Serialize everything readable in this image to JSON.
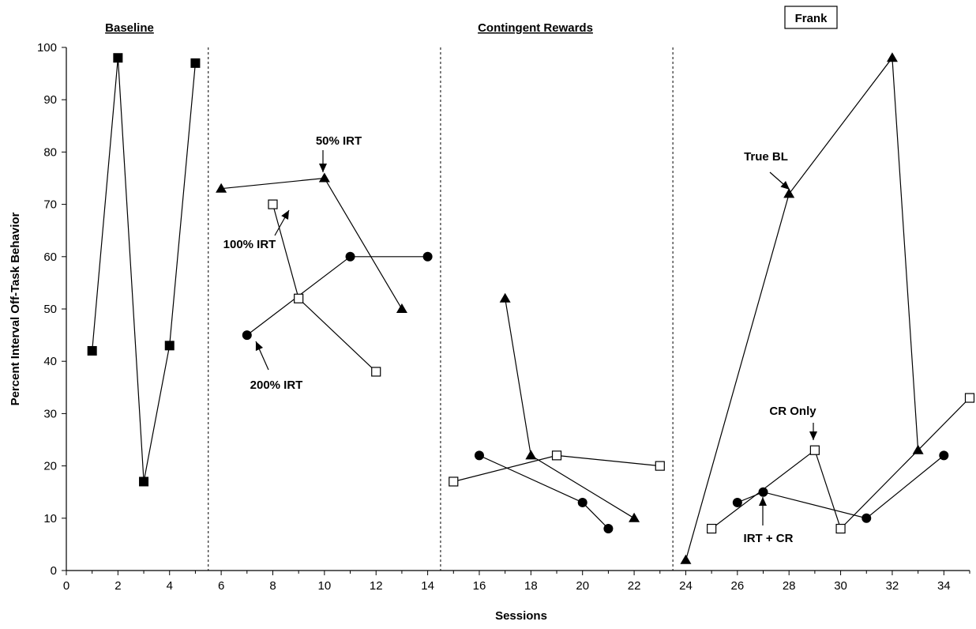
{
  "chart_data": {
    "type": "line",
    "participant": "Frank",
    "xlabel": "Sessions",
    "ylabel": "Percent Interval Off-Task Behavior",
    "xlim": [
      0,
      35
    ],
    "ylim": [
      0,
      100
    ],
    "x_ticks": [
      0,
      2,
      4,
      6,
      8,
      10,
      12,
      14,
      16,
      18,
      20,
      22,
      24,
      26,
      28,
      30,
      32,
      34
    ],
    "y_ticks": [
      0,
      10,
      20,
      30,
      40,
      50,
      60,
      70,
      80,
      90,
      100
    ],
    "grid": false,
    "legend": "none",
    "phases": [
      {
        "label": "Baseline",
        "start": 0,
        "end": 5.5
      },
      {
        "label": "Contingent Rewards",
        "start": 5.5,
        "end": 23.5
      },
      {
        "label": "",
        "start": 23.5,
        "end": 35
      }
    ],
    "phase_change_lines": [
      5.5,
      14.5,
      23.5
    ],
    "series": [
      {
        "marker": "filled-square",
        "points": [
          [
            1,
            42
          ],
          [
            2,
            98
          ],
          [
            3,
            17
          ],
          [
            4,
            43
          ],
          [
            5,
            97
          ]
        ]
      },
      {
        "marker": "filled-triangle",
        "points": [
          [
            6,
            73
          ],
          [
            10,
            75
          ],
          [
            13,
            50
          ]
        ]
      },
      {
        "marker": "open-square",
        "points": [
          [
            8,
            70
          ],
          [
            9,
            52
          ],
          [
            12,
            38
          ]
        ]
      },
      {
        "marker": "filled-circle",
        "points": [
          [
            7,
            45
          ],
          [
            11,
            60
          ],
          [
            14,
            60
          ]
        ]
      },
      {
        "marker": "filled-triangle",
        "points": [
          [
            17,
            52
          ],
          [
            18,
            22
          ],
          [
            22,
            10
          ]
        ]
      },
      {
        "marker": "open-square",
        "points": [
          [
            15,
            17
          ],
          [
            19,
            22
          ],
          [
            23,
            20
          ]
        ]
      },
      {
        "marker": "filled-circle",
        "points": [
          [
            16,
            22
          ],
          [
            20,
            13
          ],
          [
            21,
            8
          ]
        ]
      },
      {
        "marker": "filled-triangle",
        "points": [
          [
            24,
            2
          ],
          [
            28,
            72
          ],
          [
            32,
            98
          ],
          [
            33,
            23
          ]
        ]
      },
      {
        "marker": "open-square",
        "points": [
          [
            25,
            8
          ],
          [
            29,
            23
          ],
          [
            30,
            8
          ],
          [
            35,
            33
          ]
        ]
      },
      {
        "marker": "filled-circle",
        "points": [
          [
            26,
            13
          ],
          [
            27,
            15
          ],
          [
            31,
            10
          ],
          [
            34,
            22
          ]
        ]
      }
    ],
    "annotations": [
      {
        "text": "50% IRT",
        "target": [
          10,
          75
        ]
      },
      {
        "text": "100% IRT",
        "target": [
          8,
          70
        ]
      },
      {
        "text": "200% IRT",
        "target": [
          7,
          45
        ]
      },
      {
        "text": "True BL",
        "target": [
          28,
          72
        ]
      },
      {
        "text": "CR Only",
        "target": [
          29,
          23
        ]
      },
      {
        "text": "IRT + CR",
        "target": [
          27,
          15
        ]
      }
    ]
  }
}
